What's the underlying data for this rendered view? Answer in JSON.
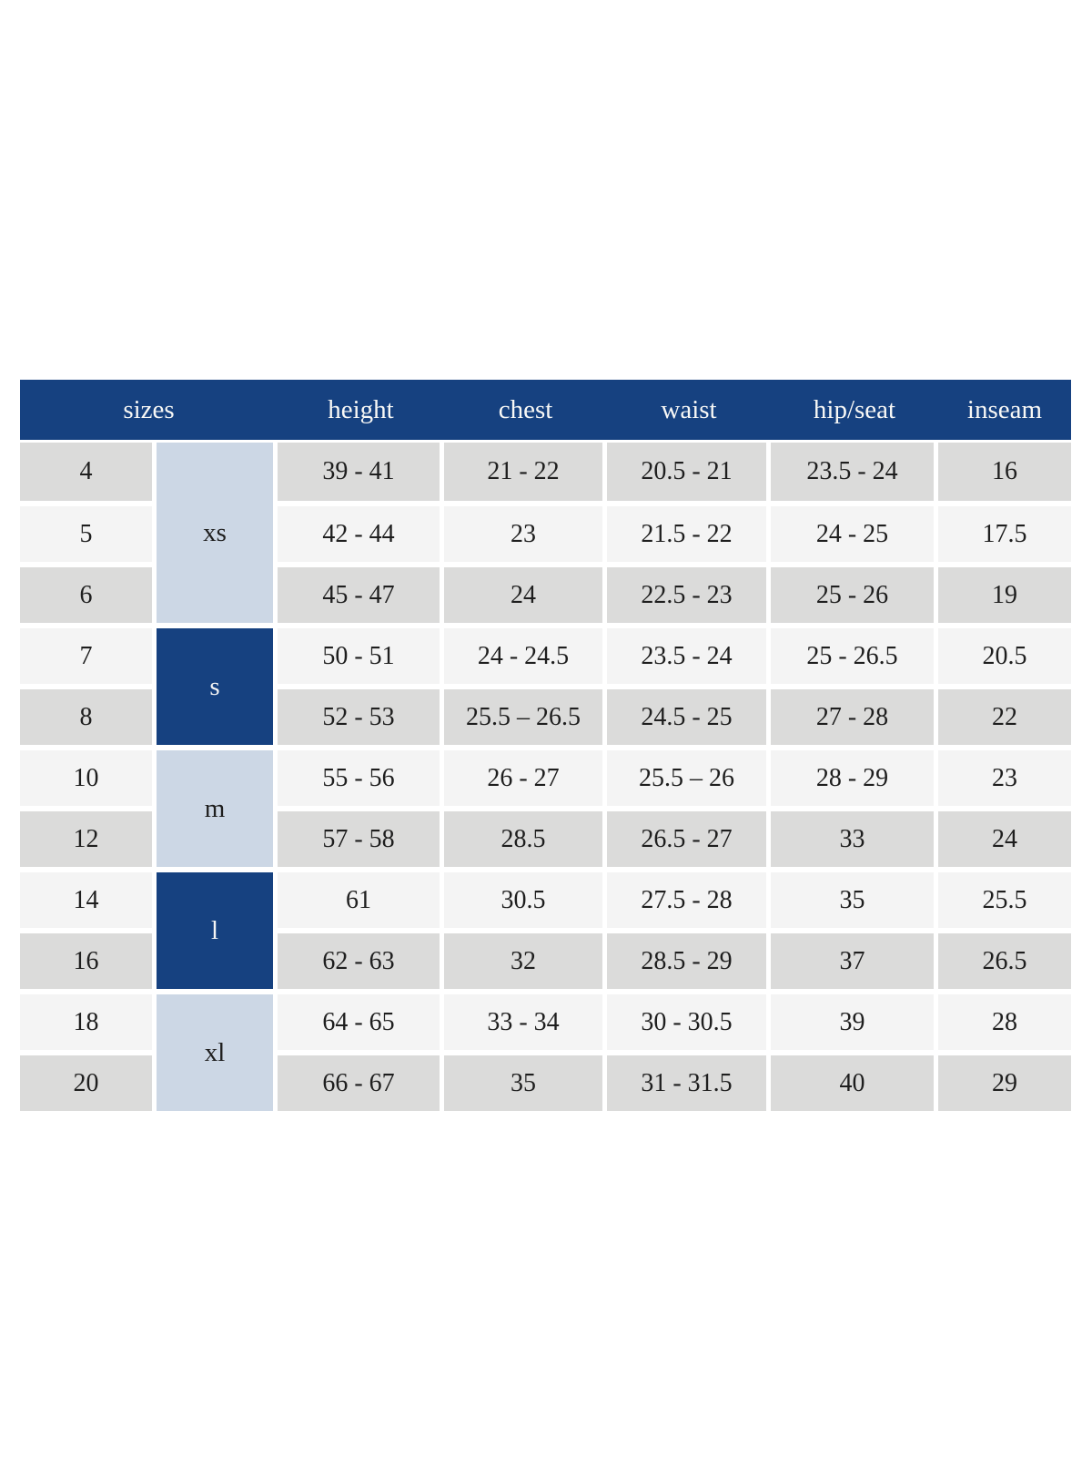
{
  "colors": {
    "page_bg": "#ffffff",
    "header_bg": "#164180",
    "header_text": "#f8f8f6",
    "group_light_bg": "#ccd7e5",
    "group_dark_bg": "#164180",
    "group_dark_text": "#f5f5f5",
    "row_gray": "#dbdbda",
    "row_light": "#f4f4f4",
    "body_text": "#1e1e1e"
  },
  "table": {
    "headers": [
      "sizes",
      "height",
      "chest",
      "waist",
      "hip/seat",
      "inseam"
    ],
    "groups": [
      {
        "label": "xs",
        "rows": 3,
        "style": "light"
      },
      {
        "label": "s",
        "rows": 2,
        "style": "dark"
      },
      {
        "label": "m",
        "rows": 2,
        "style": "light"
      },
      {
        "label": "l",
        "rows": 2,
        "style": "dark"
      },
      {
        "label": "xl",
        "rows": 2,
        "style": "light"
      }
    ],
    "rows": [
      {
        "size": "4",
        "height": "39 - 41",
        "chest": "21 - 22",
        "waist": "20.5 - 21",
        "hip_seat": "23.5 - 24",
        "inseam": "16"
      },
      {
        "size": "5",
        "height": "42 - 44",
        "chest": "23",
        "waist": "21.5 - 22",
        "hip_seat": "24 - 25",
        "inseam": "17.5"
      },
      {
        "size": "6",
        "height": "45 - 47",
        "chest": "24",
        "waist": "22.5 - 23",
        "hip_seat": "25 - 26",
        "inseam": "19"
      },
      {
        "size": "7",
        "height": "50 - 51",
        "chest": "24 - 24.5",
        "waist": "23.5 - 24",
        "hip_seat": "25 - 26.5",
        "inseam": "20.5"
      },
      {
        "size": "8",
        "height": "52 - 53",
        "chest": "25.5 – 26.5",
        "waist": "24.5 - 25",
        "hip_seat": "27 - 28",
        "inseam": "22"
      },
      {
        "size": "10",
        "height": "55 - 56",
        "chest": "26 - 27",
        "waist": "25.5 – 26",
        "hip_seat": "28 - 29",
        "inseam": "23"
      },
      {
        "size": "12",
        "height": "57 - 58",
        "chest": "28.5",
        "waist": "26.5 - 27",
        "hip_seat": "33",
        "inseam": "24"
      },
      {
        "size": "14",
        "height": "61",
        "chest": "30.5",
        "waist": "27.5 - 28",
        "hip_seat": "35",
        "inseam": "25.5"
      },
      {
        "size": "16",
        "height": "62 - 63",
        "chest": "32",
        "waist": "28.5 - 29",
        "hip_seat": "37",
        "inseam": "26.5"
      },
      {
        "size": "18",
        "height": "64 - 65",
        "chest": "33 - 34",
        "waist": "30 - 30.5",
        "hip_seat": "39",
        "inseam": "28"
      },
      {
        "size": "20",
        "height": "66 - 67",
        "chest": "35",
        "waist": "31 - 31.5",
        "hip_seat": "40",
        "inseam": "29"
      }
    ]
  }
}
